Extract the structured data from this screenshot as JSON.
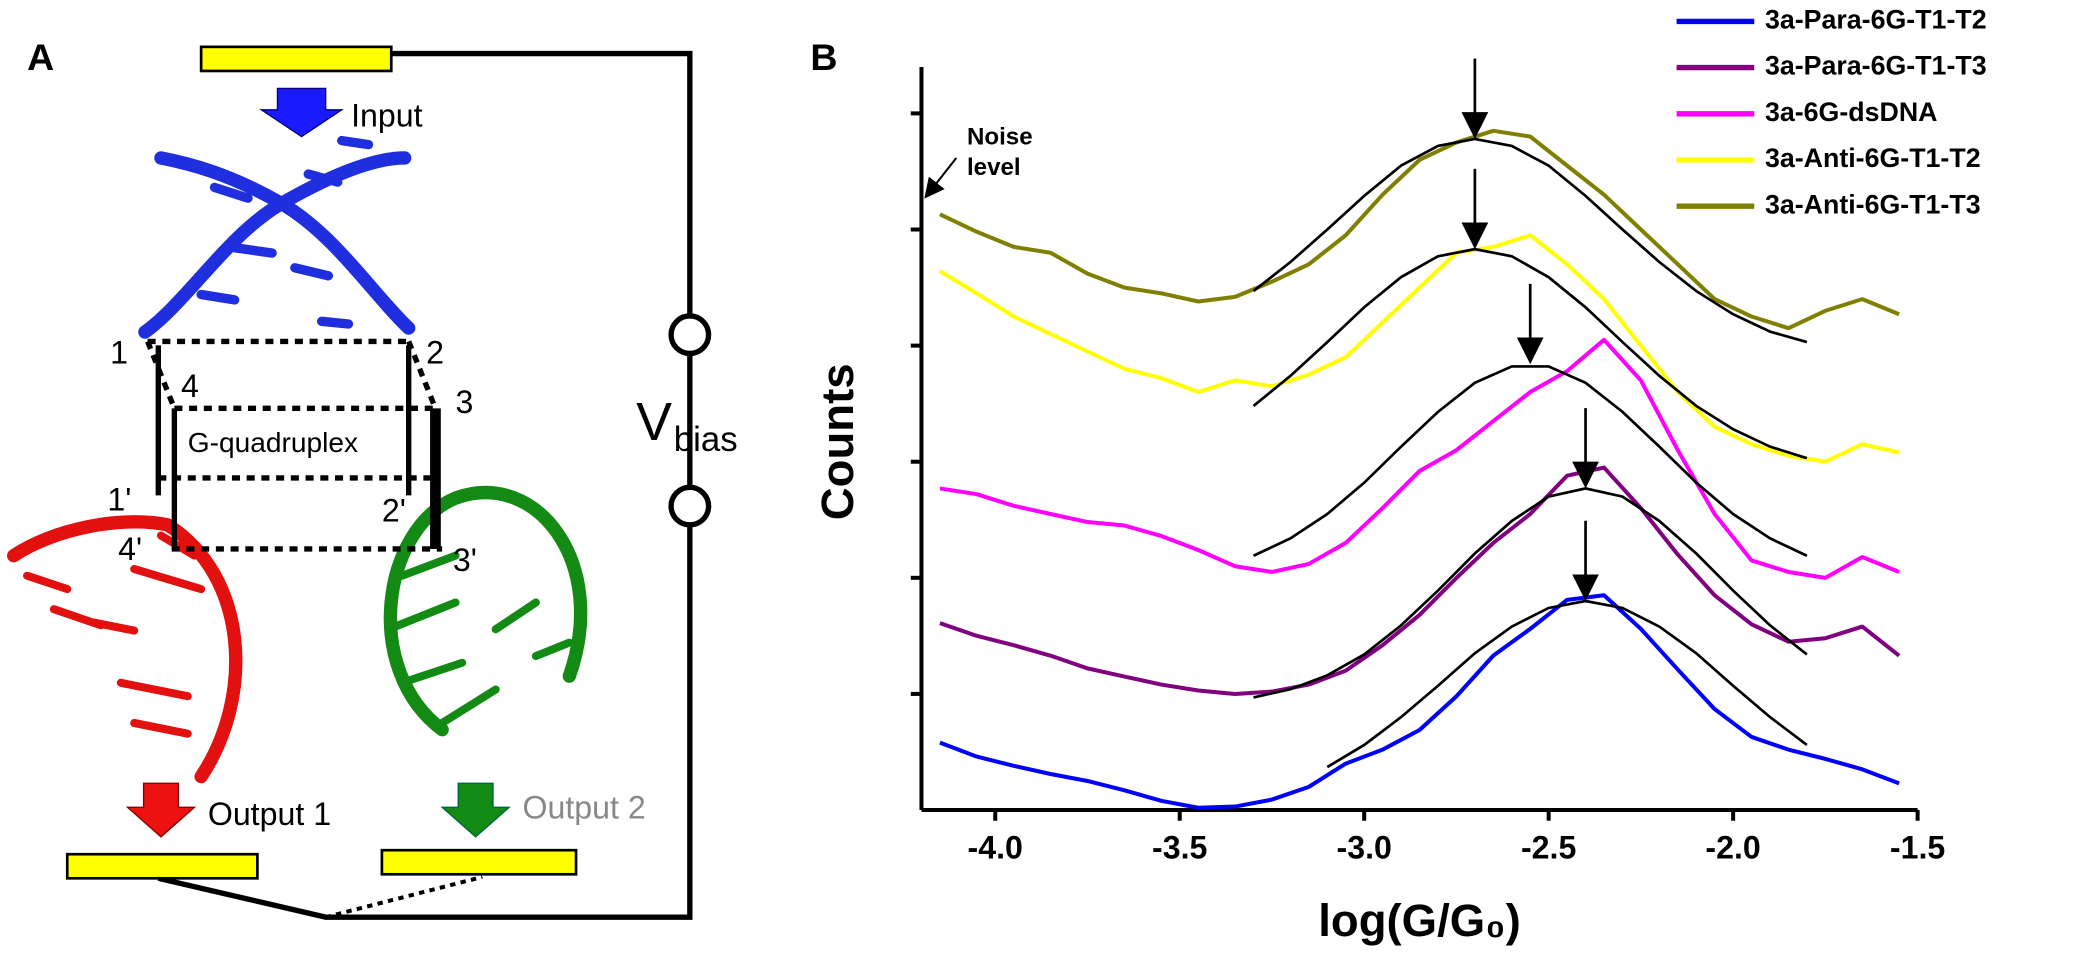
{
  "diagram": {
    "panel_label": "A",
    "input": "Input",
    "output_1": "Output 1",
    "output_2": "Output 2",
    "quadruplex": "G-quadruplex",
    "sites": [
      "1",
      "2",
      "3",
      "4",
      "1'",
      "2'",
      "3'",
      "4'"
    ],
    "voltage": "V",
    "voltage_sub": "bias"
  },
  "chart_data": {
    "type": "line",
    "panel_label": "B",
    "xlabel": "log(G/G₀)",
    "ylabel": "Counts",
    "annotation": [
      "Noise",
      "level"
    ],
    "xlim": [
      -4.2,
      -1.5
    ],
    "ylim": [
      0,
      6.4
    ],
    "xticks": [
      {
        "value": -4,
        "label": "-4.0"
      },
      -3.5,
      {
        "value": -3,
        "label": "-3.0"
      },
      -2.5,
      {
        "value": -2,
        "label": "-2.0"
      },
      -1.5
    ],
    "yticks": [
      1,
      2,
      3,
      4,
      5,
      6
    ],
    "x": [
      -4.15,
      -4.05,
      -3.95,
      -3.85,
      -3.75,
      -3.65,
      -3.55,
      -3.45,
      -3.35,
      -3.25,
      -3.15,
      -3.05,
      -2.95,
      -2.85,
      -2.75,
      -2.65,
      -2.55,
      -2.45,
      -2.35,
      -2.25,
      -2.15,
      -2.05,
      -1.95,
      -1.85,
      -1.75,
      -1.65,
      -1.55
    ],
    "series": [
      {
        "name": "3a-Para-6G-T1-T2",
        "color": "#0000ff",
        "values": [
          0.58,
          0.46,
          0.38,
          0.31,
          0.25,
          0.17,
          0.08,
          0.02,
          0.03,
          0.09,
          0.2,
          0.4,
          0.52,
          0.69,
          0.98,
          1.33,
          1.56,
          1.81,
          1.85,
          1.56,
          1.21,
          0.87,
          0.63,
          0.52,
          0.44,
          0.35,
          0.23
        ],
        "fit": {
          "x": [
            -3.1,
            -3.0,
            -2.9,
            -2.8,
            -2.7,
            -2.6,
            -2.5,
            -2.4,
            -2.3,
            -2.2,
            -2.1,
            -2.0,
            -1.9,
            -1.8
          ],
          "values": [
            0.37,
            0.56,
            0.8,
            1.07,
            1.35,
            1.58,
            1.74,
            1.8,
            1.74,
            1.58,
            1.35,
            1.07,
            0.8,
            0.56
          ]
        },
        "peak": {
          "x": -2.4,
          "y": 1.8
        }
      },
      {
        "name": "3a-Para-6G-T1-T3",
        "color": "#800080",
        "values": [
          1.61,
          1.5,
          1.42,
          1.33,
          1.22,
          1.15,
          1.08,
          1.03,
          1.0,
          1.02,
          1.08,
          1.2,
          1.42,
          1.68,
          2.0,
          2.3,
          2.55,
          2.88,
          2.95,
          2.6,
          2.2,
          1.85,
          1.6,
          1.45,
          1.48,
          1.58,
          1.33
        ],
        "fit": {
          "x": [
            -3.3,
            -3.2,
            -3.1,
            -3.0,
            -2.9,
            -2.8,
            -2.7,
            -2.6,
            -2.5,
            -2.4,
            -2.3,
            -2.2,
            -2.1,
            -2.0,
            -1.9,
            -1.8
          ],
          "values": [
            0.97,
            1.04,
            1.16,
            1.34,
            1.59,
            1.89,
            2.21,
            2.49,
            2.7,
            2.77,
            2.7,
            2.49,
            2.21,
            1.89,
            1.59,
            1.34
          ]
        },
        "peak": {
          "x": -2.4,
          "y": 2.77
        }
      },
      {
        "name": "3a-6G-dsDNA",
        "color": "#ff00ff",
        "values": [
          2.77,
          2.72,
          2.62,
          2.55,
          2.48,
          2.45,
          2.36,
          2.24,
          2.1,
          2.05,
          2.12,
          2.3,
          2.6,
          2.92,
          3.1,
          3.35,
          3.6,
          3.78,
          4.05,
          3.7,
          3.1,
          2.55,
          2.15,
          2.05,
          2.0,
          2.18,
          2.05
        ],
        "fit": {
          "x": [
            -3.3,
            -3.2,
            -3.1,
            -3.0,
            -2.9,
            -2.8,
            -2.7,
            -2.6,
            -2.5,
            -2.4,
            -2.3,
            -2.2,
            -2.1,
            -2.0,
            -1.9,
            -1.8
          ],
          "values": [
            2.19,
            2.34,
            2.55,
            2.82,
            3.13,
            3.43,
            3.68,
            3.82,
            3.82,
            3.68,
            3.43,
            3.13,
            2.82,
            2.55,
            2.34,
            2.19
          ]
        },
        "peak": {
          "x": -2.55,
          "y": 3.84
        }
      },
      {
        "name": "3a-Anti-6G-T1-T2",
        "color": "#ffff00",
        "values": [
          4.64,
          4.45,
          4.25,
          4.1,
          3.95,
          3.8,
          3.72,
          3.6,
          3.7,
          3.65,
          3.75,
          3.9,
          4.2,
          4.5,
          4.8,
          4.85,
          4.95,
          4.7,
          4.4,
          4.0,
          3.6,
          3.3,
          3.15,
          3.05,
          3.0,
          3.15,
          3.08
        ],
        "fit": {
          "x": [
            -3.3,
            -3.2,
            -3.1,
            -3.0,
            -2.9,
            -2.8,
            -2.7,
            -2.6,
            -2.5,
            -2.4,
            -2.3,
            -2.2,
            -2.1,
            -2.0,
            -1.9,
            -1.8
          ],
          "values": [
            3.48,
            3.74,
            4.03,
            4.33,
            4.59,
            4.77,
            4.83,
            4.77,
            4.59,
            4.33,
            4.03,
            3.74,
            3.48,
            3.28,
            3.13,
            3.03
          ]
        },
        "peak": {
          "x": -2.7,
          "y": 4.83
        }
      },
      {
        "name": "3a-Anti-6G-T1-T3",
        "color": "#808000",
        "values": [
          5.13,
          4.98,
          4.85,
          4.8,
          4.62,
          4.5,
          4.45,
          4.38,
          4.42,
          4.55,
          4.7,
          4.95,
          5.3,
          5.6,
          5.75,
          5.85,
          5.8,
          5.55,
          5.3,
          5.0,
          4.7,
          4.4,
          4.25,
          4.15,
          4.3,
          4.4,
          4.27
        ],
        "fit": {
          "x": [
            -3.3,
            -3.2,
            -3.1,
            -3.0,
            -2.9,
            -2.8,
            -2.7,
            -2.6,
            -2.5,
            -2.4,
            -2.3,
            -2.2,
            -2.1,
            -2.0,
            -1.9,
            -1.8
          ],
          "values": [
            4.47,
            4.72,
            5.0,
            5.29,
            5.55,
            5.72,
            5.78,
            5.72,
            5.55,
            5.29,
            5.0,
            4.72,
            4.47,
            4.27,
            4.12,
            4.03
          ]
        },
        "peak": {
          "x": -2.7,
          "y": 5.78
        }
      }
    ]
  }
}
